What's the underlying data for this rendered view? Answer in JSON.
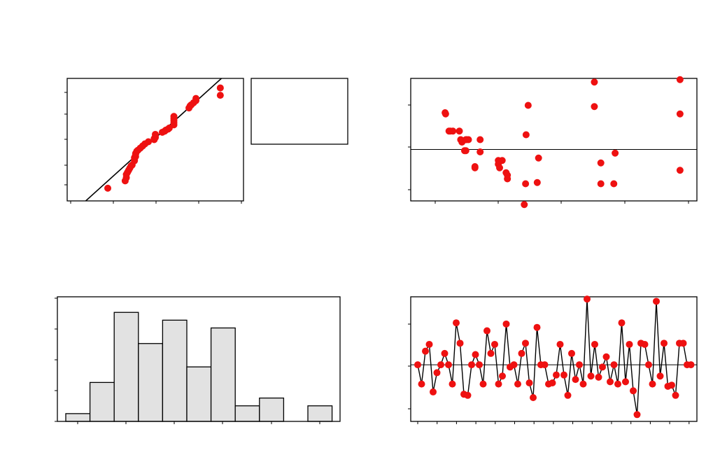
{
  "chart_data": [
    {
      "type": "scatter",
      "panel": "normal-probability-plot",
      "xlim": [
        -7.6,
        7.6
      ],
      "ylim": [
        -2.9,
        2.9
      ],
      "fit_line": {
        "x": [
          -6.0,
          6.0
        ],
        "y": [
          -2.9,
          3.05
        ]
      },
      "x": [
        -4.1,
        -2.6,
        -2.5,
        -2.5,
        -2.4,
        -2.3,
        -2.2,
        -2.1,
        -2.0,
        -1.8,
        -1.8,
        -1.8,
        -1.7,
        -1.7,
        -1.7,
        -1.6,
        -1.5,
        -1.3,
        -1.1,
        -0.9,
        -0.6,
        -0.1,
        -0.1,
        0.0,
        0.0,
        0.0,
        0.6,
        0.8,
        0.9,
        1.1,
        1.2,
        1.6,
        1.6,
        1.6,
        1.6,
        1.6,
        2.9,
        3.0,
        3.1,
        3.3,
        3.5,
        3.5,
        5.6,
        5.6
      ],
      "y": [
        -2.3,
        -1.95,
        -1.8,
        -1.65,
        -1.55,
        -1.45,
        -1.35,
        -1.25,
        -1.2,
        -1.0,
        -0.95,
        -0.85,
        -0.8,
        -0.7,
        -0.65,
        -0.55,
        -0.5,
        -0.4,
        -0.3,
        -0.2,
        -0.1,
        0.0,
        0.05,
        0.1,
        0.15,
        0.25,
        0.35,
        0.4,
        0.45,
        0.5,
        0.55,
        0.7,
        0.8,
        0.9,
        1.0,
        1.1,
        1.5,
        1.6,
        1.65,
        1.75,
        1.85,
        1.95,
        2.1,
        2.45
      ]
    },
    {
      "type": "scatter",
      "panel": "residuals-vs-fitted",
      "xlim": [
        0,
        1
      ],
      "ylim": [
        -2.1,
        2.9
      ],
      "reference_line": 0,
      "x": [
        0.065,
        0.067,
        0.08,
        0.085,
        0.095,
        0.12,
        0.125,
        0.13,
        0.14,
        0.145,
        0.145,
        0.148,
        0.155,
        0.18,
        0.18,
        0.2,
        0.2,
        0.27,
        0.27,
        0.275,
        0.285,
        0.3,
        0.305,
        0.305,
        0.375,
        0.37,
        0.377,
        0.385,
        0.425,
        0.42,
        0.64,
        0.64,
        0.665,
        0.665,
        0.72,
        0.715,
        0.97,
        0.97,
        0.97
      ],
      "y": [
        1.5,
        1.45,
        0.75,
        0.75,
        0.75,
        0.75,
        0.4,
        0.3,
        -0.05,
        -0.05,
        0.4,
        0.4,
        0.4,
        -0.7,
        -0.75,
        -0.1,
        0.4,
        -0.45,
        -0.6,
        -0.75,
        -0.45,
        -0.95,
        -1.05,
        -1.2,
        -1.4,
        -2.25,
        0.6,
        1.8,
        -0.35,
        -1.35,
        2.75,
        1.75,
        -0.55,
        -1.4,
        -0.15,
        -1.4,
        2.85,
        1.45,
        -0.85
      ]
    },
    {
      "type": "bar",
      "panel": "histogram",
      "ylim": [
        0,
        16
      ],
      "values": [
        1,
        5,
        14,
        10,
        13,
        7,
        12,
        2,
        3,
        0,
        2
      ]
    },
    {
      "type": "line",
      "panel": "residuals-in-order",
      "xlim": [
        0,
        73
      ],
      "ylim": [
        -2.5,
        3.0
      ],
      "reference_line": 0,
      "x": [
        1,
        2,
        3,
        4,
        5,
        6,
        7,
        8,
        9,
        10,
        11,
        12,
        13,
        14,
        15,
        16,
        17,
        18,
        19,
        20,
        21,
        22,
        23,
        24,
        25,
        26,
        27,
        28,
        29,
        30,
        31,
        32,
        33,
        34,
        35,
        36,
        37,
        38,
        39,
        40,
        41,
        42,
        43,
        44,
        45,
        46,
        47,
        48,
        49,
        50,
        51,
        52,
        53,
        54,
        55,
        56,
        57,
        58,
        59,
        60,
        61,
        62,
        63,
        64,
        65,
        66,
        67,
        68,
        69,
        70,
        71,
        72
      ],
      "y": [
        0.0,
        -0.85,
        0.6,
        0.9,
        -1.2,
        -0.35,
        0.0,
        0.5,
        0.0,
        -0.85,
        1.85,
        0.95,
        -1.3,
        -1.35,
        0.0,
        0.45,
        0.0,
        -0.85,
        1.5,
        0.5,
        0.9,
        -0.85,
        -0.5,
        1.8,
        -0.1,
        0.0,
        -0.85,
        0.5,
        0.95,
        -0.8,
        -1.45,
        1.65,
        0.0,
        0.0,
        -0.85,
        -0.8,
        -0.45,
        0.9,
        -0.45,
        -1.35,
        0.5,
        -0.65,
        0.0,
        -0.85,
        2.9,
        -0.5,
        0.9,
        -0.55,
        -0.1,
        0.35,
        -0.75,
        0.0,
        -0.85,
        1.85,
        -0.75,
        0.9,
        -1.15,
        -2.2,
        0.95,
        0.9,
        0.0,
        -0.85,
        2.8,
        -0.5,
        0.95,
        -0.95,
        -0.9,
        -1.35,
        0.95,
        0.95,
        0.0,
        0.0
      ]
    }
  ]
}
